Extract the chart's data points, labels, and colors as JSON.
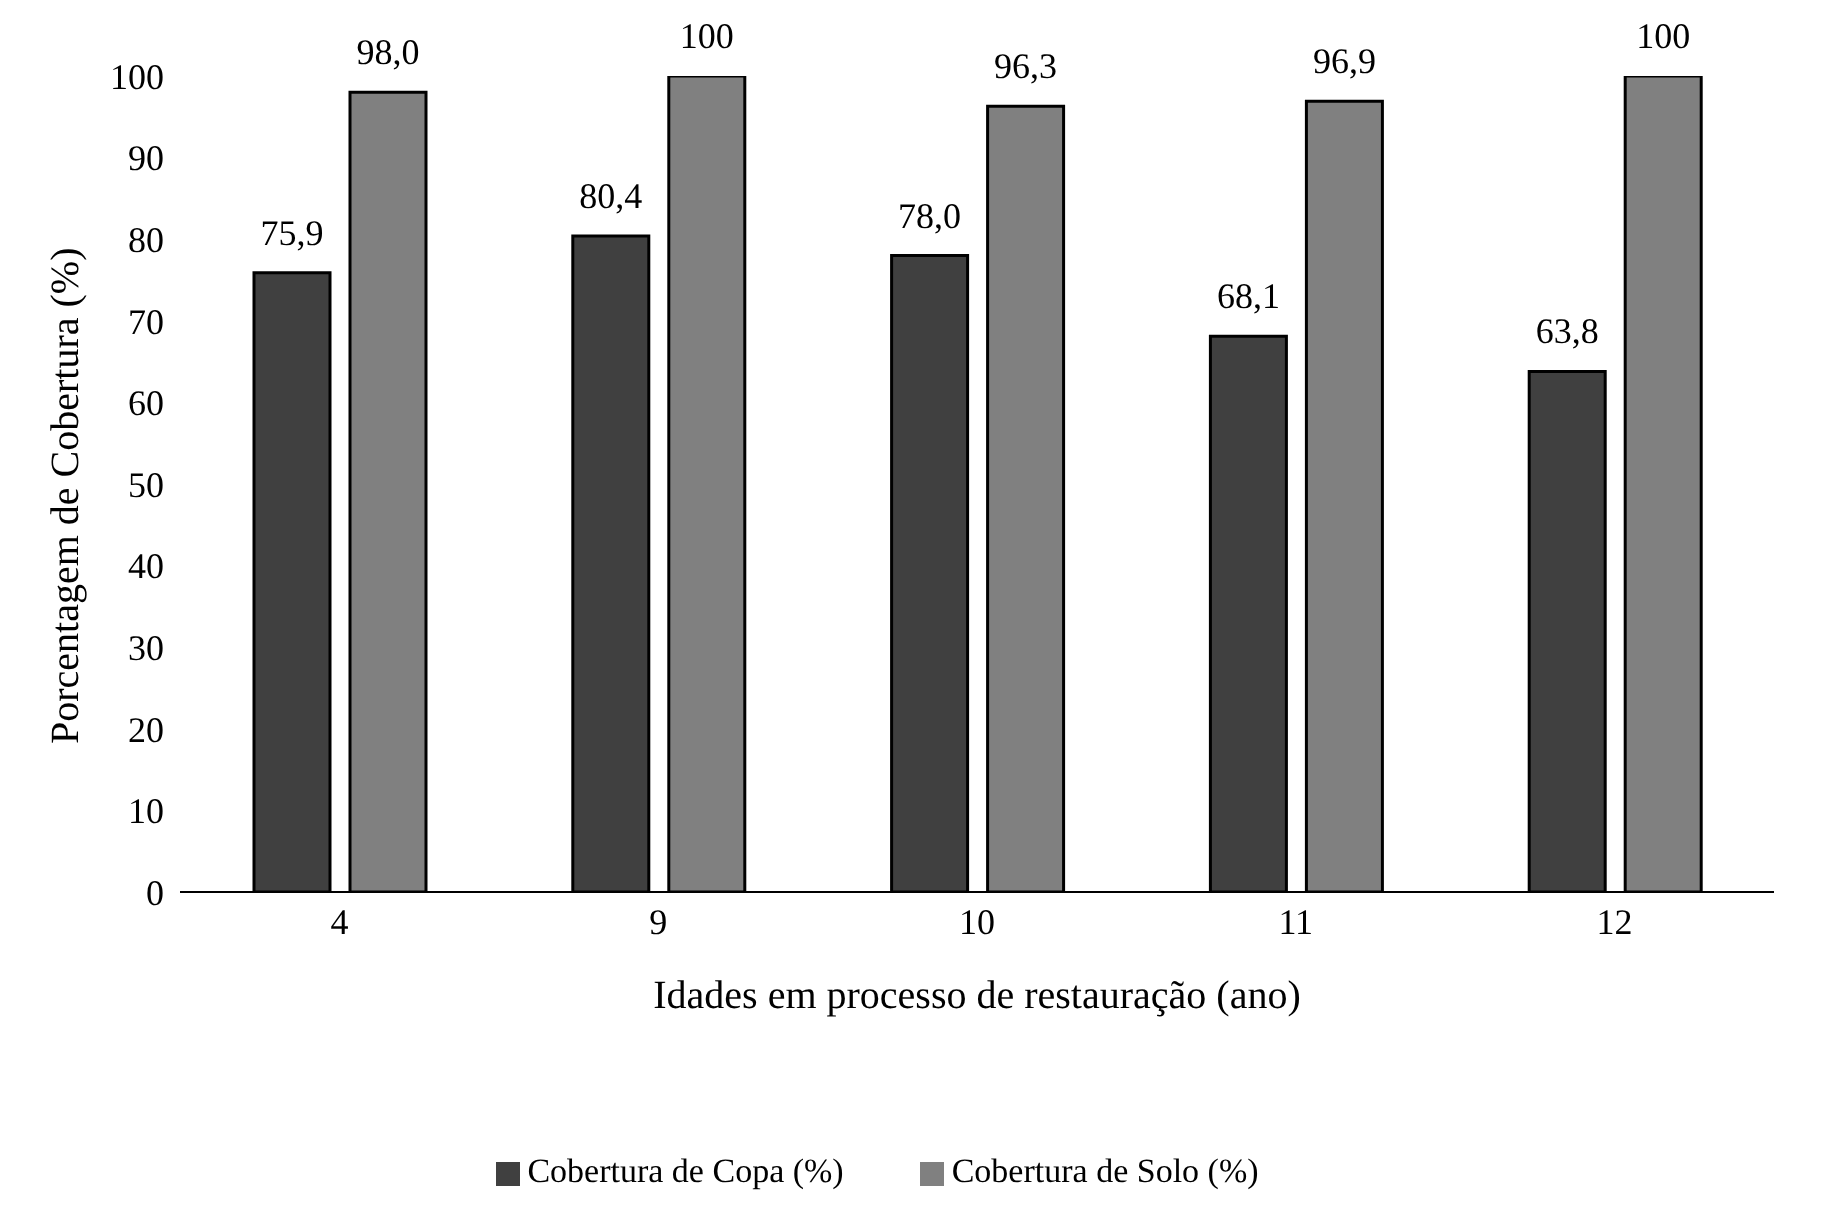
{
  "chart_data": {
    "type": "bar",
    "xlabel": "Idades em processo de restauração (ano)",
    "ylabel": "Porcentagem de Cobertura (%)",
    "categories": [
      "4",
      "9",
      "10",
      "11",
      "12"
    ],
    "series": [
      {
        "name": "Cobertura de Copa (%)",
        "color": "#404040",
        "values": [
          75.9,
          80.4,
          78.0,
          68.1,
          63.8
        ],
        "value_labels": [
          "75,9",
          "80,4",
          "78,0",
          "68,1",
          "63,8"
        ]
      },
      {
        "name": "Cobertura de Solo (%)",
        "color": "#808080",
        "values": [
          98.0,
          100,
          96.3,
          96.9,
          100
        ],
        "value_labels": [
          "98,0",
          "100",
          "96,3",
          "96,9",
          "100"
        ]
      }
    ],
    "ylim": [
      0,
      100
    ],
    "yticks": [
      0,
      10,
      20,
      30,
      40,
      50,
      60,
      70,
      80,
      90,
      100
    ],
    "grid": false,
    "legend": "bottom"
  }
}
